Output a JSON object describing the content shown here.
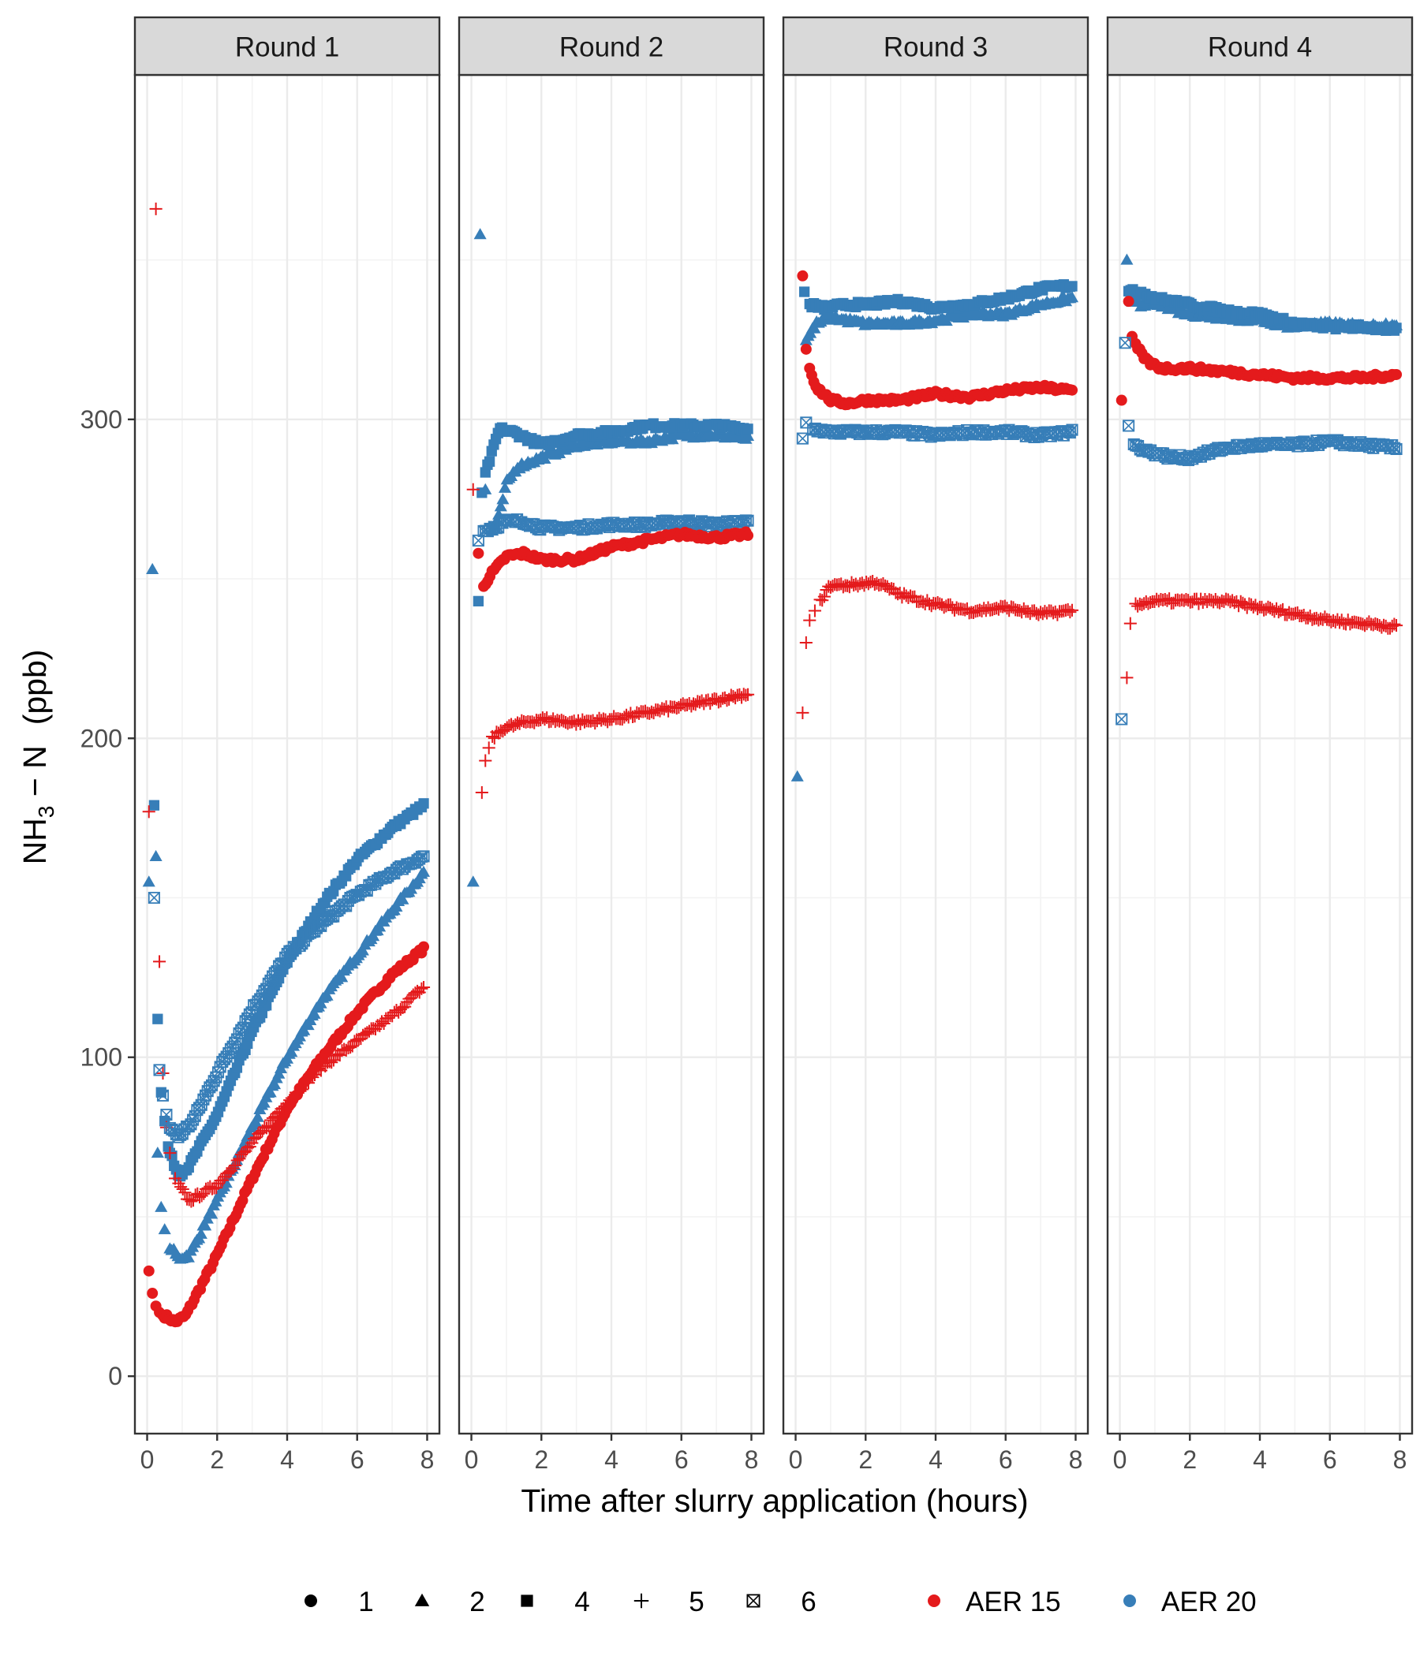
{
  "chart_data": {
    "type": "scatter",
    "facets": [
      {
        "label": "Round 1"
      },
      {
        "label": "Round 2"
      },
      {
        "label": "Round 3"
      },
      {
        "label": "Round 4"
      }
    ],
    "xlabel": "Time after slurry application (hours)",
    "ylabel": {
      "main": "NH",
      "sub": "3",
      "rest": " − N",
      "unit": "(ppb)"
    },
    "x_ticks": [
      "0",
      "2",
      "4",
      "6",
      "8"
    ],
    "y_ticks": [
      "0",
      "100",
      "200",
      "300"
    ],
    "xlim": [
      -0.35,
      8.35
    ],
    "ylim": [
      -18,
      408
    ],
    "grid": true,
    "legend_position": "bottom",
    "legend": {
      "shapes": [
        {
          "label": "1",
          "shape": "circle"
        },
        {
          "label": "2",
          "shape": "triangle"
        },
        {
          "label": "4",
          "shape": "square"
        },
        {
          "label": "5",
          "shape": "plus"
        },
        {
          "label": "6",
          "shape": "boxx"
        }
      ],
      "colors": [
        {
          "label": "AER 15",
          "color": "#E41A1C"
        },
        {
          "label": "AER 20",
          "color": "#377EB8"
        }
      ]
    },
    "series": [
      {
        "facet": 0,
        "shape": "circle",
        "color": "#E41A1C",
        "spike": [
          [
            0.05,
            33
          ],
          [
            0.15,
            26
          ],
          [
            0.25,
            22
          ],
          [
            0.35,
            20
          ],
          [
            0.45,
            19
          ]
        ],
        "curve": [
          [
            0.5,
            19
          ],
          [
            0.8,
            17
          ],
          [
            1.1,
            19
          ],
          [
            2,
            38
          ],
          [
            3,
            62
          ],
          [
            4,
            84
          ],
          [
            5,
            100
          ],
          [
            6,
            114
          ],
          [
            7,
            126
          ],
          [
            7.9,
            134
          ]
        ]
      },
      {
        "facet": 0,
        "shape": "triangle",
        "color": "#377EB8",
        "spike": [
          [
            0.05,
            155
          ],
          [
            0.15,
            253
          ],
          [
            0.25,
            163
          ],
          [
            0.3,
            70
          ],
          [
            0.4,
            53
          ],
          [
            0.5,
            46
          ],
          [
            0.65,
            40
          ]
        ],
        "curve": [
          [
            0.7,
            40
          ],
          [
            0.9,
            37
          ],
          [
            1.2,
            38
          ],
          [
            2,
            55
          ],
          [
            3,
            78
          ],
          [
            4,
            100
          ],
          [
            5,
            118
          ],
          [
            6,
            132
          ],
          [
            7,
            146
          ],
          [
            7.9,
            158
          ]
        ]
      },
      {
        "facet": 0,
        "shape": "square",
        "color": "#377EB8",
        "spike": [
          [
            0.2,
            179
          ],
          [
            0.3,
            112
          ],
          [
            0.4,
            89
          ],
          [
            0.5,
            80
          ],
          [
            0.6,
            72
          ]
        ],
        "curve": [
          [
            0.65,
            70
          ],
          [
            0.9,
            63
          ],
          [
            1.2,
            66
          ],
          [
            2,
            82
          ],
          [
            3,
            108
          ],
          [
            4,
            130
          ],
          [
            5,
            148
          ],
          [
            6,
            162
          ],
          [
            7,
            172
          ],
          [
            7.9,
            179
          ]
        ]
      },
      {
        "facet": 0,
        "shape": "plus",
        "color": "#E41A1C",
        "spike": [
          [
            0.05,
            177
          ],
          [
            0.25,
            366
          ],
          [
            0.35,
            130
          ],
          [
            0.45,
            95
          ],
          [
            0.55,
            78
          ],
          [
            0.65,
            70
          ],
          [
            0.8,
            62
          ]
        ],
        "curve": [
          [
            0.9,
            60
          ],
          [
            1.2,
            55
          ],
          [
            2,
            60
          ],
          [
            3,
            73
          ],
          [
            4,
            86
          ],
          [
            5,
            97
          ],
          [
            6,
            105
          ],
          [
            7,
            113
          ],
          [
            7.9,
            122
          ]
        ]
      },
      {
        "facet": 0,
        "shape": "boxx",
        "color": "#377EB8",
        "spike": [
          [
            0.2,
            150
          ],
          [
            0.35,
            96
          ],
          [
            0.45,
            88
          ],
          [
            0.55,
            82
          ]
        ],
        "curve": [
          [
            0.65,
            78
          ],
          [
            0.9,
            75
          ],
          [
            1.3,
            80
          ],
          [
            2,
            95
          ],
          [
            3,
            115
          ],
          [
            4,
            132
          ],
          [
            5,
            142
          ],
          [
            6,
            151
          ],
          [
            7,
            158
          ],
          [
            7.9,
            163
          ]
        ]
      },
      {
        "facet": 1,
        "shape": "triangle",
        "color": "#377EB8",
        "spike": [
          [
            0.05,
            155
          ],
          [
            0.25,
            358
          ],
          [
            0.4,
            278
          ]
        ],
        "curve": [
          [
            0.6,
            265
          ],
          [
            0.8,
            270
          ],
          [
            1,
            280
          ],
          [
            1.3,
            285
          ],
          [
            2,
            288
          ],
          [
            3,
            292
          ],
          [
            4,
            293
          ],
          [
            5,
            293
          ],
          [
            6,
            295
          ],
          [
            7,
            295
          ],
          [
            7.9,
            294
          ]
        ]
      },
      {
        "facet": 1,
        "shape": "square",
        "color": "#377EB8",
        "spike": [
          [
            0.2,
            243
          ],
          [
            0.3,
            277
          ]
        ],
        "curve": [
          [
            0.4,
            283
          ],
          [
            0.6,
            290
          ],
          [
            0.8,
            297
          ],
          [
            1.2,
            296
          ],
          [
            2,
            292
          ],
          [
            3,
            295
          ],
          [
            4,
            296
          ],
          [
            5,
            298
          ],
          [
            6,
            298
          ],
          [
            7,
            298
          ],
          [
            7.9,
            297
          ]
        ]
      },
      {
        "facet": 1,
        "shape": "boxx",
        "color": "#377EB8",
        "spike": [
          [
            0.2,
            262
          ]
        ],
        "curve": [
          [
            0.35,
            265
          ],
          [
            0.6,
            266
          ],
          [
            1,
            268
          ],
          [
            1.5,
            268
          ],
          [
            2,
            266
          ],
          [
            3,
            266
          ],
          [
            4,
            267
          ],
          [
            5,
            267
          ],
          [
            6,
            268
          ],
          [
            7,
            267
          ],
          [
            7.9,
            268
          ]
        ]
      },
      {
        "facet": 1,
        "shape": "circle",
        "color": "#E41A1C",
        "spike": [
          [
            0.2,
            258
          ]
        ],
        "curve": [
          [
            0.35,
            248
          ],
          [
            0.6,
            252
          ],
          [
            1,
            257
          ],
          [
            1.5,
            258
          ],
          [
            2,
            256
          ],
          [
            3,
            256
          ],
          [
            4,
            260
          ],
          [
            5,
            262
          ],
          [
            6,
            264
          ],
          [
            7,
            263
          ],
          [
            7.9,
            264
          ]
        ]
      },
      {
        "facet": 1,
        "shape": "plus",
        "color": "#E41A1C",
        "spike": [
          [
            0.05,
            278
          ],
          [
            0.3,
            183
          ],
          [
            0.4,
            193
          ],
          [
            0.5,
            197
          ]
        ],
        "curve": [
          [
            0.6,
            200
          ],
          [
            0.9,
            203
          ],
          [
            1.5,
            205
          ],
          [
            2,
            206
          ],
          [
            3,
            205
          ],
          [
            4,
            206
          ],
          [
            5,
            208
          ],
          [
            6,
            210
          ],
          [
            7,
            212
          ],
          [
            7.9,
            214
          ]
        ]
      },
      {
        "facet": 2,
        "shape": "triangle",
        "color": "#377EB8",
        "spike": [
          [
            0.05,
            188
          ]
        ],
        "curve": [
          [
            0.3,
            325
          ],
          [
            0.6,
            330
          ],
          [
            1,
            332
          ],
          [
            2,
            330
          ],
          [
            3,
            330
          ],
          [
            4,
            331
          ],
          [
            5,
            333
          ],
          [
            6,
            333
          ],
          [
            7,
            336
          ],
          [
            7.9,
            338
          ]
        ]
      },
      {
        "facet": 2,
        "shape": "square",
        "color": "#377EB8",
        "spike": [
          [
            0.25,
            340
          ]
        ],
        "curve": [
          [
            0.4,
            336
          ],
          [
            0.8,
            335
          ],
          [
            1.5,
            336
          ],
          [
            2,
            336
          ],
          [
            3,
            337
          ],
          [
            4,
            335
          ],
          [
            5,
            336
          ],
          [
            6,
            338
          ],
          [
            7,
            341
          ],
          [
            7.9,
            342
          ]
        ]
      },
      {
        "facet": 2,
        "shape": "circle",
        "color": "#E41A1C",
        "spike": [
          [
            0.2,
            345
          ],
          [
            0.3,
            322
          ]
        ],
        "curve": [
          [
            0.4,
            316
          ],
          [
            0.6,
            310
          ],
          [
            1,
            306
          ],
          [
            1.5,
            305
          ],
          [
            2,
            306
          ],
          [
            3,
            306
          ],
          [
            4,
            308
          ],
          [
            5,
            307
          ],
          [
            6,
            309
          ],
          [
            7,
            310
          ],
          [
            7.9,
            309
          ]
        ]
      },
      {
        "facet": 2,
        "shape": "boxx",
        "color": "#377EB8",
        "spike": [
          [
            0.2,
            294
          ],
          [
            0.3,
            299
          ]
        ],
        "curve": [
          [
            0.5,
            297
          ],
          [
            1,
            296
          ],
          [
            2,
            296
          ],
          [
            3,
            296
          ],
          [
            4,
            295
          ],
          [
            5,
            296
          ],
          [
            6,
            296
          ],
          [
            7,
            295
          ],
          [
            7.9,
            296
          ]
        ]
      },
      {
        "facet": 2,
        "shape": "plus",
        "color": "#E41A1C",
        "spike": [
          [
            0.2,
            208
          ],
          [
            0.3,
            230
          ],
          [
            0.4,
            237
          ],
          [
            0.55,
            240
          ]
        ],
        "curve": [
          [
            0.7,
            243
          ],
          [
            1,
            248
          ],
          [
            1.5,
            248
          ],
          [
            2.3,
            249
          ],
          [
            3,
            245
          ],
          [
            4,
            242
          ],
          [
            5,
            240
          ],
          [
            6,
            241
          ],
          [
            7,
            239
          ],
          [
            7.9,
            240
          ]
        ]
      },
      {
        "facet": 3,
        "shape": "triangle",
        "color": "#377EB8",
        "spike": [
          [
            0.2,
            350
          ]
        ],
        "curve": [
          [
            0.3,
            338
          ],
          [
            0.6,
            336
          ],
          [
            1,
            336
          ],
          [
            2,
            333
          ],
          [
            3,
            332
          ],
          [
            4,
            331
          ],
          [
            5,
            329
          ],
          [
            6,
            330
          ],
          [
            7,
            329
          ],
          [
            7.9,
            330
          ]
        ]
      },
      {
        "facet": 3,
        "shape": "square",
        "color": "#377EB8",
        "curve": [
          [
            0.25,
            340
          ],
          [
            0.6,
            340
          ],
          [
            1,
            338
          ],
          [
            2,
            336
          ],
          [
            3,
            334
          ],
          [
            4,
            333
          ],
          [
            5,
            330
          ],
          [
            6,
            329
          ],
          [
            7,
            329
          ],
          [
            7.9,
            328
          ]
        ]
      },
      {
        "facet": 3,
        "shape": "circle",
        "color": "#E41A1C",
        "spike": [
          [
            0.05,
            306
          ],
          [
            0.25,
            337
          ],
          [
            0.35,
            326
          ]
        ],
        "curve": [
          [
            0.45,
            323
          ],
          [
            0.8,
            318
          ],
          [
            1.2,
            316
          ],
          [
            2,
            316
          ],
          [
            3,
            315
          ],
          [
            4,
            314
          ],
          [
            5,
            313
          ],
          [
            6,
            313
          ],
          [
            7,
            313
          ],
          [
            7.9,
            314
          ]
        ]
      },
      {
        "facet": 3,
        "shape": "boxx",
        "color": "#377EB8",
        "spike": [
          [
            0.05,
            206
          ],
          [
            0.15,
            324
          ],
          [
            0.25,
            298
          ]
        ],
        "curve": [
          [
            0.4,
            292
          ],
          [
            0.8,
            290
          ],
          [
            1.5,
            288
          ],
          [
            2,
            288
          ],
          [
            3,
            291
          ],
          [
            4,
            292
          ],
          [
            5,
            292
          ],
          [
            6,
            293
          ],
          [
            7,
            292
          ],
          [
            7.9,
            291
          ]
        ]
      },
      {
        "facet": 3,
        "shape": "plus",
        "color": "#E41A1C",
        "spike": [
          [
            0.2,
            219
          ],
          [
            0.3,
            236
          ]
        ],
        "curve": [
          [
            0.45,
            242
          ],
          [
            1,
            243
          ],
          [
            2,
            243
          ],
          [
            3,
            243
          ],
          [
            4,
            241
          ],
          [
            5,
            239
          ],
          [
            6,
            237
          ],
          [
            7,
            236
          ],
          [
            7.9,
            235
          ]
        ]
      }
    ]
  }
}
